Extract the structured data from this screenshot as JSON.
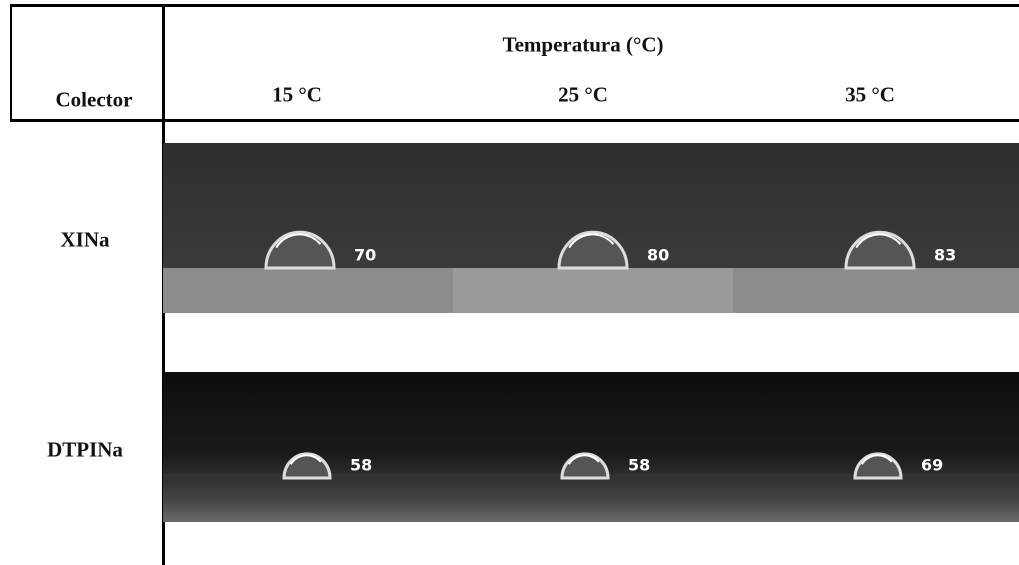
{
  "header": {
    "group": "Temperatura (°C)",
    "columns": [
      "Colector",
      "15 °C",
      "25 °C",
      "35 °C"
    ]
  },
  "rows": [
    {
      "label": "XINa",
      "values": [
        70,
        80,
        83
      ]
    },
    {
      "label": "DTPINa",
      "values": [
        58,
        58,
        69
      ]
    }
  ]
}
